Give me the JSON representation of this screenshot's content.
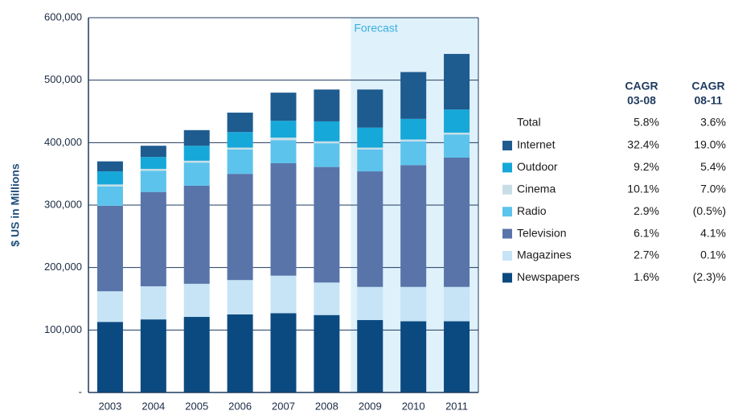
{
  "chart_data": {
    "type": "stacked_bar",
    "ylabel": "$ US in Millions",
    "annotation": "Forecast",
    "forecast_from": "2009",
    "categories": [
      "2003",
      "2004",
      "2005",
      "2006",
      "2007",
      "2008",
      "2009",
      "2010",
      "2011"
    ],
    "ylim": [
      0,
      600000
    ],
    "yticks": [
      {
        "value": 0,
        "label": "-"
      },
      {
        "value": 100000,
        "label": "100,000"
      },
      {
        "value": 200000,
        "label": "200,000"
      },
      {
        "value": 300000,
        "label": "300,000"
      },
      {
        "value": 400000,
        "label": "400,000"
      },
      {
        "value": 500000,
        "label": "500,000"
      },
      {
        "value": 600000,
        "label": "600,000"
      }
    ],
    "grid": true,
    "cagr_headers": [
      [
        "CAGR",
        "03-08"
      ],
      [
        "CAGR",
        "08-11"
      ]
    ],
    "total": {
      "name": "Total",
      "cagr": [
        "5.8%",
        "3.6%"
      ]
    },
    "series": [
      {
        "name": "Newspapers",
        "color": "#0b4a80",
        "values": [
          113000,
          117000,
          121000,
          125000,
          127000,
          124000,
          116000,
          114000,
          114000
        ],
        "cagr": [
          "1.6%",
          "(2.3)%"
        ]
      },
      {
        "name": "Magazines",
        "color": "#c6e4f6",
        "values": [
          49000,
          53000,
          53000,
          55000,
          60000,
          52000,
          53000,
          55000,
          55000
        ],
        "cagr": [
          "2.7%",
          "0.1%"
        ]
      },
      {
        "name": "Television",
        "color": "#5874a9",
        "values": [
          137000,
          151000,
          157000,
          170000,
          180000,
          185000,
          185000,
          195000,
          207000
        ],
        "cagr": [
          "6.1%",
          "4.1%"
        ]
      },
      {
        "name": "Radio",
        "color": "#5cc3ec",
        "values": [
          31000,
          34000,
          37000,
          39000,
          37000,
          38000,
          35000,
          38000,
          37000
        ],
        "cagr": [
          "2.9%",
          "(0.5%)"
        ]
      },
      {
        "name": "Cinema",
        "color": "#c9dde6",
        "values": [
          3000,
          3000,
          3000,
          3000,
          4000,
          3000,
          3000,
          3000,
          3000
        ],
        "cagr": [
          "10.1%",
          "7.0%"
        ]
      },
      {
        "name": "Outdoor",
        "color": "#16a8d9",
        "values": [
          21000,
          19000,
          24000,
          25000,
          27000,
          32000,
          32000,
          33000,
          37000
        ],
        "cagr": [
          "9.2%",
          "5.4%"
        ]
      },
      {
        "name": "Internet",
        "color": "#1e5b8f",
        "values": [
          16000,
          18000,
          25000,
          31000,
          45000,
          51000,
          61000,
          75000,
          89000
        ],
        "cagr": [
          "32.4%",
          "19.0%"
        ]
      }
    ]
  }
}
